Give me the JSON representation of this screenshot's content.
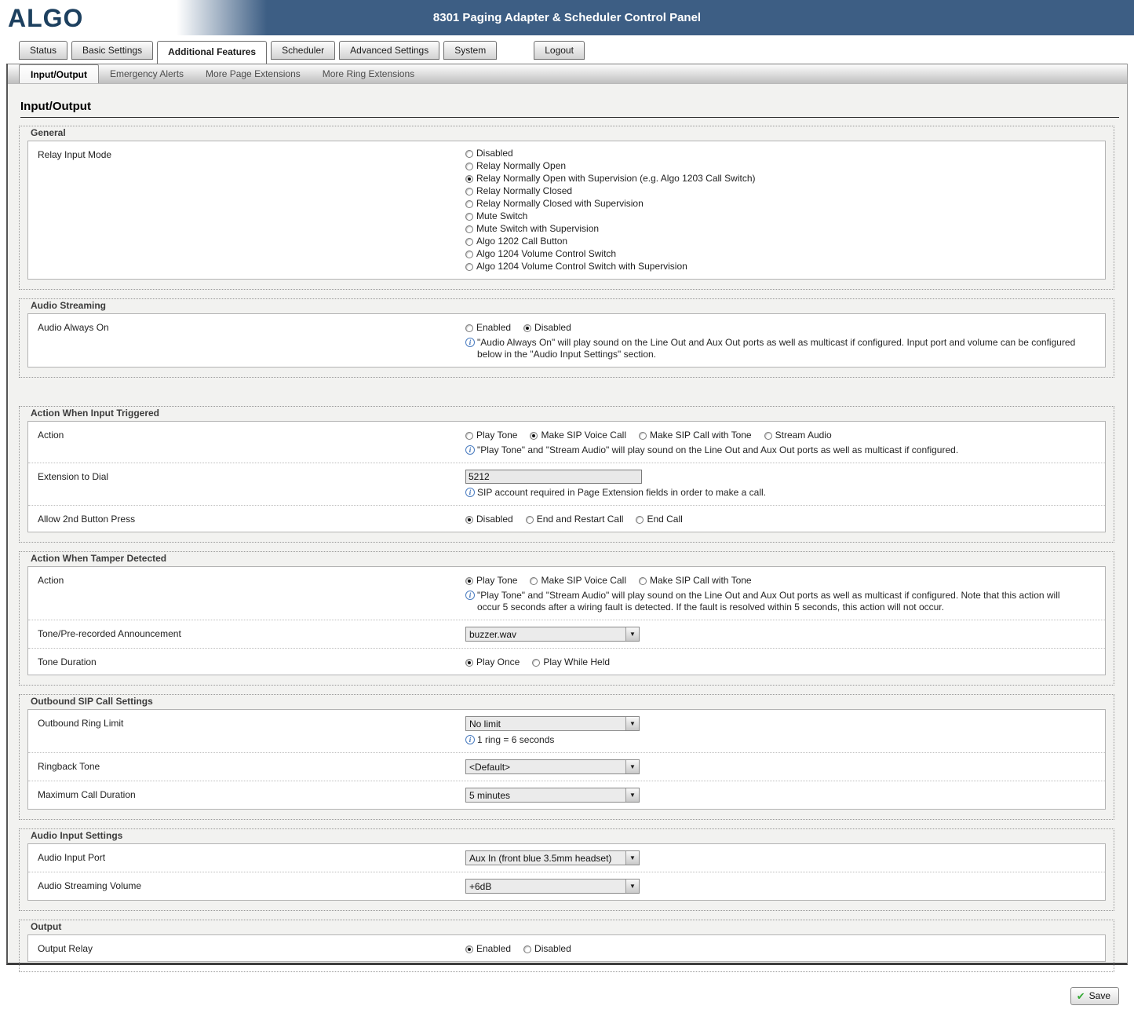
{
  "header": {
    "logo": "ALGO",
    "title": "8301 Paging Adapter & Scheduler Control Panel"
  },
  "tabs": [
    {
      "label": "Status",
      "active": false
    },
    {
      "label": "Basic Settings",
      "active": false
    },
    {
      "label": "Additional Features",
      "active": true
    },
    {
      "label": "Scheduler",
      "active": false
    },
    {
      "label": "Advanced Settings",
      "active": false
    },
    {
      "label": "System",
      "active": false
    },
    {
      "label": "Logout",
      "active": false,
      "gap_before": true
    }
  ],
  "subtabs": [
    {
      "label": "Input/Output",
      "active": true
    },
    {
      "label": "Emergency Alerts",
      "active": false
    },
    {
      "label": "More Page Extensions",
      "active": false
    },
    {
      "label": "More Ring Extensions",
      "active": false
    }
  ],
  "page_title": "Input/Output",
  "icons": {
    "info": "i",
    "dropdown": "▼",
    "save_check": "✔"
  },
  "sections": [
    {
      "title": "General",
      "rows": [
        {
          "label": "Relay Input Mode",
          "control": {
            "type": "radio-stack",
            "options": [
              "Disabled",
              "Relay Normally Open",
              "Relay Normally Open with Supervision (e.g. Algo 1203 Call Switch)",
              "Relay Normally Closed",
              "Relay Normally Closed with Supervision",
              "Mute Switch",
              "Mute Switch with Supervision",
              "Algo 1202 Call Button",
              "Algo 1204 Volume Control Switch",
              "Algo 1204 Volume Control Switch with Supervision"
            ],
            "selected": 2
          }
        }
      ]
    },
    {
      "title": "Audio Streaming",
      "rows": [
        {
          "label": "Audio Always On",
          "control": {
            "type": "radio-row",
            "options": [
              "Enabled",
              "Disabled"
            ],
            "selected": 1
          },
          "info": "\"Audio Always On\" will play sound on the Line Out and Aux Out ports as well as multicast if configured. Input port and volume can be configured below in the \"Audio Input Settings\" section."
        }
      ]
    },
    {
      "title": "Action When Input Triggered",
      "rows": [
        {
          "label": "Action",
          "control": {
            "type": "radio-row",
            "options": [
              "Play Tone",
              "Make SIP Voice Call",
              "Make SIP Call with Tone",
              "Stream Audio"
            ],
            "selected": 1
          },
          "info": "\"Play Tone\" and \"Stream Audio\" will play sound on the Line Out and Aux Out ports as well as multicast if configured."
        },
        {
          "label": "Extension to Dial",
          "control": {
            "type": "text",
            "value": "5212"
          },
          "info": "SIP account required in Page Extension fields in order to make a call."
        },
        {
          "label": "Allow 2nd Button Press",
          "control": {
            "type": "radio-row",
            "options": [
              "Disabled",
              "End and Restart Call",
              "End Call"
            ],
            "selected": 0
          }
        }
      ]
    },
    {
      "title": "Action When Tamper Detected",
      "rows": [
        {
          "label": "Action",
          "control": {
            "type": "radio-row",
            "options": [
              "Play Tone",
              "Make SIP Voice Call",
              "Make SIP Call with Tone"
            ],
            "selected": 0
          },
          "info": "\"Play Tone\" and \"Stream Audio\" will play sound on the Line Out and Aux Out ports as well as multicast if configured. Note that this action will occur 5 seconds after a wiring fault is detected. If the fault is resolved within 5 seconds, this action will not occur."
        },
        {
          "label": "Tone/Pre-recorded Announcement",
          "control": {
            "type": "select",
            "value": "buzzer.wav"
          }
        },
        {
          "label": "Tone Duration",
          "control": {
            "type": "radio-row",
            "options": [
              "Play Once",
              "Play While Held"
            ],
            "selected": 0
          }
        }
      ]
    },
    {
      "title": "Outbound SIP Call Settings",
      "rows": [
        {
          "label": "Outbound Ring Limit",
          "control": {
            "type": "select",
            "value": "No limit"
          },
          "info": "1 ring = 6 seconds"
        },
        {
          "label": "Ringback Tone",
          "control": {
            "type": "select",
            "value": "<Default>"
          }
        },
        {
          "label": "Maximum Call Duration",
          "control": {
            "type": "select",
            "value": "5 minutes"
          }
        }
      ]
    },
    {
      "title": "Audio Input Settings",
      "rows": [
        {
          "label": "Audio Input Port",
          "control": {
            "type": "select",
            "value": "Aux In (front blue 3.5mm headset)"
          }
        },
        {
          "label": "Audio Streaming Volume",
          "control": {
            "type": "select",
            "value": "+6dB"
          }
        }
      ]
    },
    {
      "title": "Output",
      "rows": [
        {
          "label": "Output Relay",
          "control": {
            "type": "radio-row",
            "options": [
              "Enabled",
              "Disabled"
            ],
            "selected": 0
          }
        }
      ]
    }
  ],
  "footer": {
    "save_label": "Save"
  }
}
